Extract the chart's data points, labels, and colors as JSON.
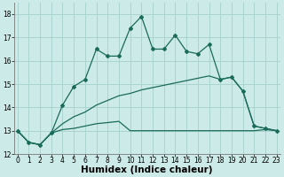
{
  "xlabel": "Humidex (Indice chaleur)",
  "bg_color": "#cceae7",
  "grid_color": "#aad4d0",
  "line_color": "#1a6b5a",
  "x_values": [
    0,
    1,
    2,
    3,
    4,
    5,
    6,
    7,
    8,
    9,
    10,
    11,
    12,
    13,
    14,
    15,
    16,
    17,
    18,
    19,
    20,
    21,
    22,
    23
  ],
  "line1_y": [
    13.0,
    12.5,
    12.4,
    12.9,
    14.1,
    14.9,
    15.2,
    16.5,
    16.2,
    16.2,
    17.4,
    17.9,
    16.5,
    16.5,
    17.1,
    16.4,
    16.3,
    16.7,
    15.2,
    15.3,
    14.7,
    13.2,
    13.1,
    13.0
  ],
  "line2_y": [
    13.0,
    12.5,
    12.4,
    12.9,
    13.05,
    13.1,
    13.2,
    13.3,
    13.35,
    13.4,
    13.0,
    13.0,
    13.0,
    13.0,
    13.0,
    13.0,
    13.0,
    13.0,
    13.0,
    13.0,
    13.0,
    13.0,
    13.05,
    13.0
  ],
  "line3_y": [
    13.0,
    12.5,
    12.4,
    12.9,
    13.3,
    13.6,
    13.8,
    14.1,
    14.3,
    14.5,
    14.6,
    14.75,
    14.85,
    14.95,
    15.05,
    15.15,
    15.25,
    15.35,
    15.2,
    15.3,
    14.7,
    13.2,
    13.1,
    13.0
  ],
  "ylim": [
    12,
    18.5
  ],
  "xlim": [
    -0.3,
    23.3
  ],
  "yticks": [
    12,
    13,
    14,
    15,
    16,
    17,
    18
  ],
  "xticks": [
    0,
    1,
    2,
    3,
    4,
    5,
    6,
    7,
    8,
    9,
    10,
    11,
    12,
    13,
    14,
    15,
    16,
    17,
    18,
    19,
    20,
    21,
    22,
    23
  ],
  "tick_fontsize": 5.5,
  "xlabel_fontsize": 7.5,
  "marker": "D",
  "marker_size": 2.0,
  "linewidth": 0.9
}
